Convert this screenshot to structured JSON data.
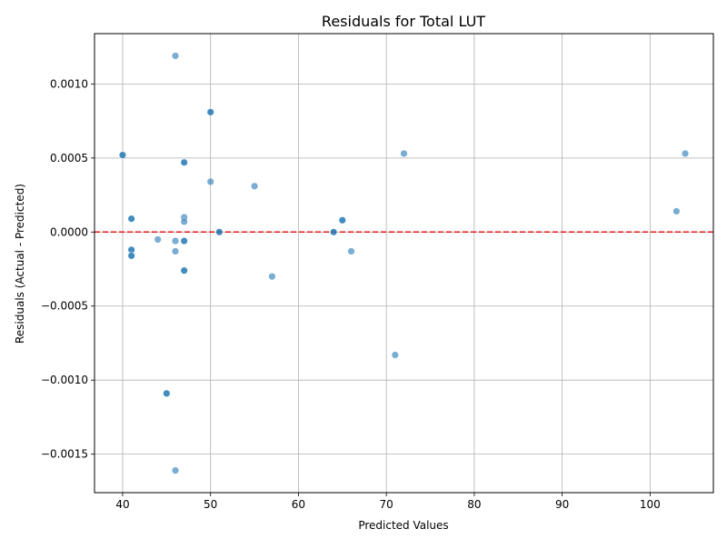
{
  "chart_data": {
    "type": "scatter",
    "title": "Residuals for Total LUT",
    "xlabel": "Predicted Values",
    "ylabel": "Residuals (Actual - Predicted)",
    "xlim": [
      36.8,
      107.2
    ],
    "ylim": [
      -0.00176,
      0.00134
    ],
    "xticks": [
      40,
      50,
      60,
      70,
      80,
      90,
      100
    ],
    "xtick_labels": [
      "40",
      "50",
      "60",
      "70",
      "80",
      "90",
      "100"
    ],
    "yticks": [
      -0.0015,
      -0.001,
      -0.0005,
      0.0,
      0.0005,
      0.001
    ],
    "ytick_labels": [
      "−0.0015",
      "−0.0010",
      "−0.0005",
      "0.0000",
      "0.0005",
      "0.0010"
    ],
    "grid": true,
    "reference_line": {
      "y": 0,
      "style": "dashed",
      "color": "#e41a1c"
    },
    "point_color": "#1f77b4",
    "points": [
      {
        "x": 46,
        "y": 0.00119
      },
      {
        "x": 50,
        "y": 0.00081
      },
      {
        "x": 50,
        "y": 0.00081
      },
      {
        "x": 40,
        "y": 0.00052
      },
      {
        "x": 40,
        "y": 0.00052
      },
      {
        "x": 72,
        "y": 0.00053
      },
      {
        "x": 104,
        "y": 0.00053
      },
      {
        "x": 47,
        "y": 0.00047
      },
      {
        "x": 47,
        "y": 0.00047
      },
      {
        "x": 50,
        "y": 0.00034
      },
      {
        "x": 55,
        "y": 0.00031
      },
      {
        "x": 103,
        "y": 0.00014
      },
      {
        "x": 41,
        "y": 9e-05
      },
      {
        "x": 41,
        "y": 9e-05
      },
      {
        "x": 47,
        "y": 0.0001
      },
      {
        "x": 47,
        "y": 7e-05
      },
      {
        "x": 65,
        "y": 8e-05
      },
      {
        "x": 65,
        "y": 8e-05
      },
      {
        "x": 51,
        "y": 0.0
      },
      {
        "x": 51,
        "y": 0.0
      },
      {
        "x": 64,
        "y": 0.0
      },
      {
        "x": 64,
        "y": 0.0
      },
      {
        "x": 44,
        "y": -5e-05
      },
      {
        "x": 46,
        "y": -6e-05
      },
      {
        "x": 47,
        "y": -6e-05
      },
      {
        "x": 47,
        "y": -6e-05
      },
      {
        "x": 41,
        "y": -0.00012
      },
      {
        "x": 41,
        "y": -0.00012
      },
      {
        "x": 41,
        "y": -0.00016
      },
      {
        "x": 41,
        "y": -0.00016
      },
      {
        "x": 46,
        "y": -0.00013
      },
      {
        "x": 66,
        "y": -0.00013
      },
      {
        "x": 47,
        "y": -0.00026
      },
      {
        "x": 47,
        "y": -0.00026
      },
      {
        "x": 57,
        "y": -0.0003
      },
      {
        "x": 71,
        "y": -0.00083
      },
      {
        "x": 45,
        "y": -0.00109
      },
      {
        "x": 45,
        "y": -0.00109
      },
      {
        "x": 46,
        "y": -0.00161
      }
    ]
  }
}
